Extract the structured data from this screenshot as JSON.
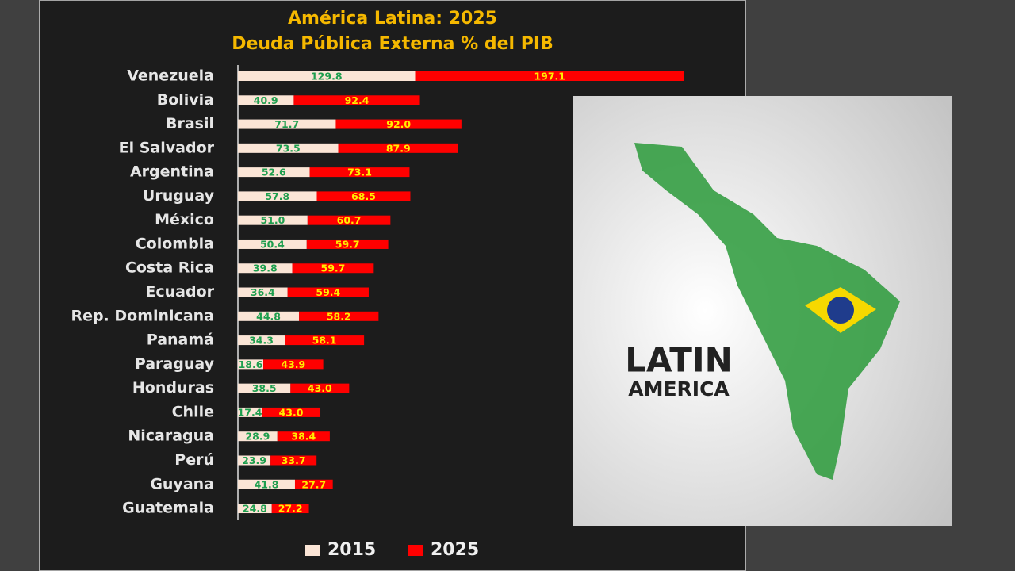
{
  "chart_data": {
    "type": "stacked-bar",
    "orientation": "horizontal",
    "title": [
      "América Latina: 2025",
      "Deuda Pública Externa % del PIB"
    ],
    "categories": [
      "Venezuela",
      "Bolivia",
      "Brasil",
      "El Salvador",
      "Argentina",
      "Uruguay",
      "México",
      "Colombia",
      "Costa Rica",
      "Ecuador",
      "Rep. Dominicana",
      "Panamá",
      "Paraguay",
      "Honduras",
      "Chile",
      "Nicaragua",
      "Perú",
      "Guyana",
      "Guatemala"
    ],
    "series": [
      {
        "name": "2015",
        "color": "#fbe5d6",
        "label_color": "#1e9e4e",
        "values": [
          129.8,
          40.9,
          71.7,
          73.5,
          52.6,
          57.8,
          51.0,
          50.4,
          39.8,
          36.4,
          44.8,
          34.3,
          18.6,
          38.5,
          17.4,
          28.9,
          23.9,
          41.8,
          24.8
        ],
        "value_labels": [
          "129.8",
          "40.9",
          "71.7",
          "73.5",
          "52.6",
          "57.8",
          "51.0",
          "50.4",
          "39.8",
          "36.4",
          "44.8",
          "34.3",
          "18.6",
          "38.5",
          "17.4",
          "28.9",
          "23.9",
          "41.8",
          "24.8"
        ]
      },
      {
        "name": "2025",
        "color": "#ff0000",
        "label_color": "#ffee00",
        "values": [
          197.1,
          92.4,
          92.0,
          87.9,
          73.1,
          68.5,
          60.7,
          59.7,
          59.7,
          59.4,
          58.2,
          58.1,
          43.9,
          43.0,
          43.0,
          38.4,
          33.7,
          27.7,
          27.2
        ],
        "value_labels": [
          "197.1",
          "92.4",
          "92.0",
          "87.9",
          "73.1",
          "68.5",
          "60.7",
          "59.7",
          "59.7",
          "59.4",
          "58.2",
          "58.1",
          "43.9",
          "43.0",
          "43.0",
          "38.4",
          "33.7",
          "27.7",
          "27.2"
        ]
      }
    ],
    "legend": "bottom"
  },
  "image": {
    "text": [
      "LATIN",
      "AMERICA"
    ]
  }
}
